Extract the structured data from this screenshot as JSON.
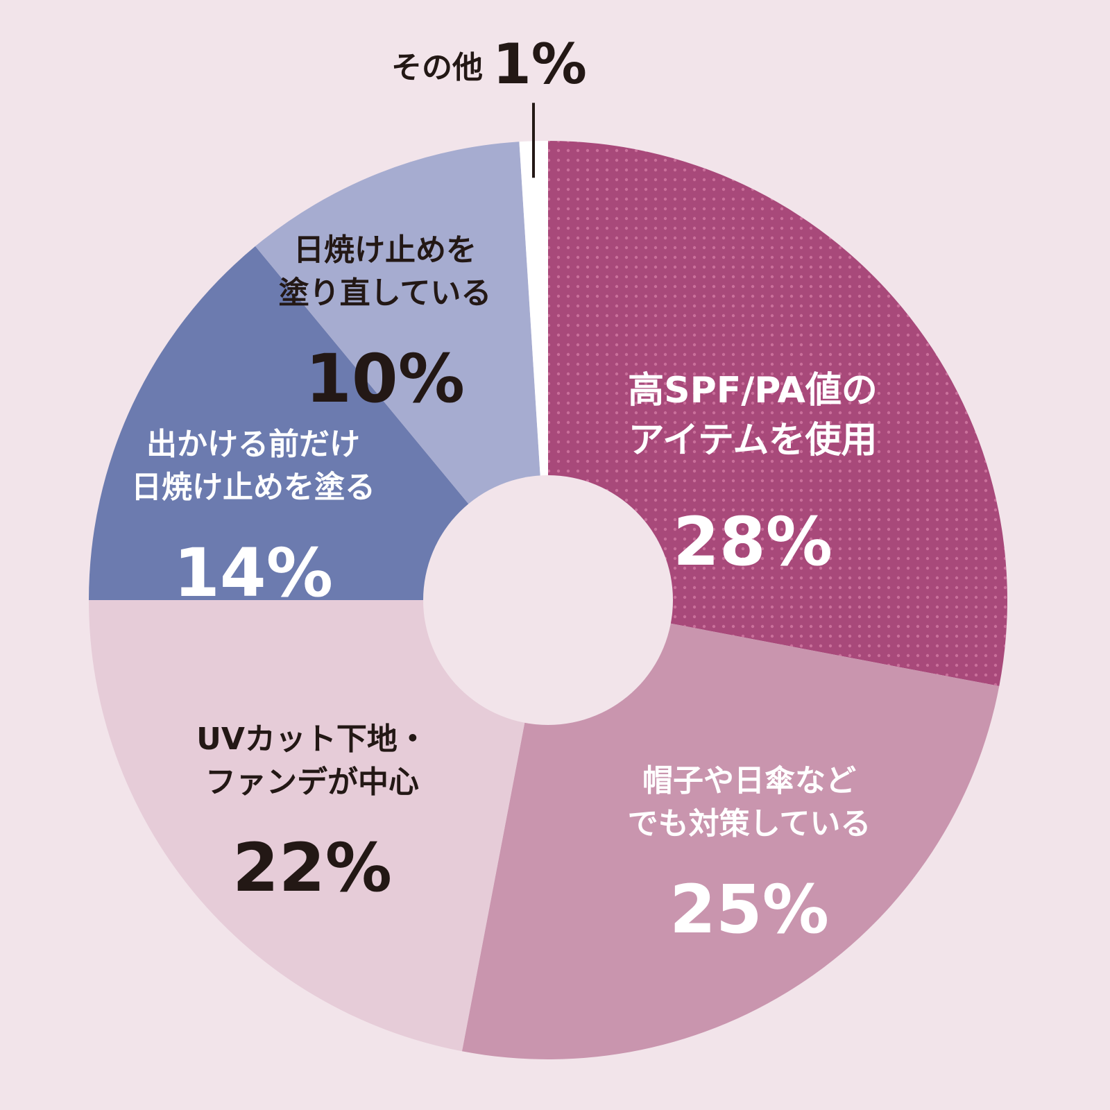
{
  "chart_data": {
    "type": "pie",
    "donut": true,
    "colors": {
      "background": "#f2e4ea",
      "dot_pattern": "#e58fb6"
    },
    "slices": [
      {
        "label_lines": [
          "高SPF/PA値の",
          "アイテムを使用"
        ],
        "value": 28,
        "value_label": "28%",
        "color": "#a8497a",
        "text_color": "#ffffff",
        "pattern": "dots"
      },
      {
        "label_lines": [
          "帽子や日傘など",
          "でも対策している"
        ],
        "value": 25,
        "value_label": "25%",
        "color": "#c995ae",
        "text_color": "#ffffff"
      },
      {
        "label_lines": [
          "UVカット下地・",
          "ファンデが中心"
        ],
        "value": 22,
        "value_label": "22%",
        "color": "#e6ccd8",
        "text_color": "#231815"
      },
      {
        "label_lines": [
          "出かける前だけ",
          "日焼け止めを塗る"
        ],
        "value": 14,
        "value_label": "14%",
        "color": "#6c7baf",
        "text_color": "#ffffff"
      },
      {
        "label_lines": [
          "日焼け止めを",
          "塗り直している"
        ],
        "value": 10,
        "value_label": "10%",
        "color": "#a6acd0",
        "text_color": "#231815"
      },
      {
        "label_lines": [
          "その他"
        ],
        "value": 1,
        "value_label": "1%",
        "color": "#ffffff",
        "text_color": "#231815",
        "callout": true
      }
    ]
  }
}
